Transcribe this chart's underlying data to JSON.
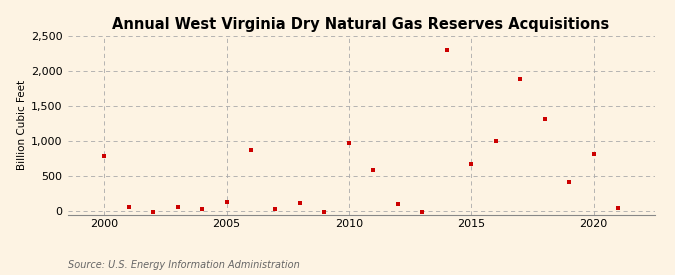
{
  "title": "Annual West Virginia Dry Natural Gas Reserves Acquisitions",
  "ylabel": "Billion Cubic Feet",
  "source": "Source: U.S. Energy Information Administration",
  "years": [
    2000,
    2001,
    2002,
    2003,
    2004,
    2005,
    2006,
    2007,
    2008,
    2009,
    2010,
    2011,
    2012,
    2013,
    2014,
    2015,
    2016,
    2017,
    2018,
    2019,
    2020,
    2021
  ],
  "values": [
    780,
    50,
    -10,
    50,
    30,
    130,
    870,
    30,
    110,
    -10,
    970,
    580,
    100,
    -10,
    2290,
    670,
    1000,
    1880,
    1310,
    410,
    820,
    40
  ],
  "marker_color": "#cc0000",
  "background_color": "#fdf3e3",
  "grid_color": "#aaaaaa",
  "ylim": [
    -50,
    2500
  ],
  "yticks": [
    0,
    500,
    1000,
    1500,
    2000,
    2500
  ],
  "xlim": [
    1998.5,
    2022.5
  ],
  "xticks": [
    2000,
    2005,
    2010,
    2015,
    2020
  ],
  "title_fontsize": 10.5,
  "ylabel_fontsize": 7.5,
  "tick_fontsize": 8,
  "source_fontsize": 7
}
